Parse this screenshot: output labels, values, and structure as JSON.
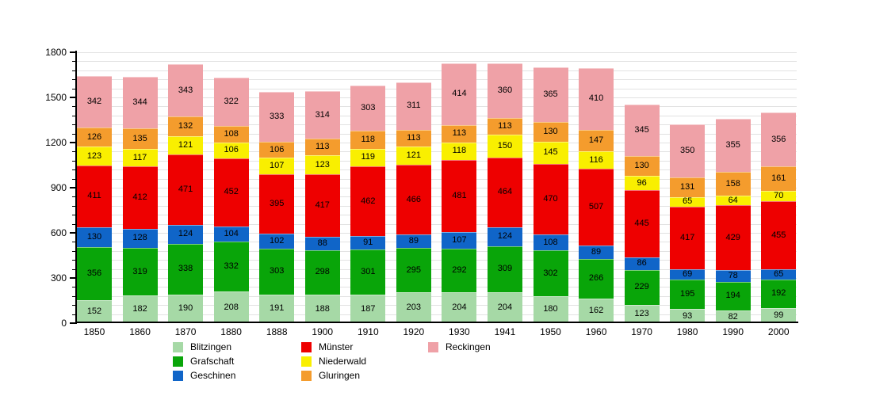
{
  "chart_data": {
    "type": "bar",
    "stacked": true,
    "title": "",
    "xlabel": "",
    "ylabel": "",
    "ylim": [
      0,
      1800
    ],
    "y_major_step": 300,
    "y_minor_step": 60,
    "y_ticks": [
      0,
      300,
      600,
      900,
      1200,
      1500,
      1800
    ],
    "grid": true,
    "categories": [
      "1850",
      "1860",
      "1870",
      "1880",
      "1888",
      "1900",
      "1910",
      "1920",
      "1930",
      "1941",
      "1950",
      "1960",
      "1970",
      "1980",
      "1990",
      "2000"
    ],
    "series": [
      {
        "name": "Blitzingen",
        "color": "#a6d9a6",
        "values": [
          152,
          182,
          190,
          208,
          191,
          188,
          187,
          203,
          204,
          204,
          180,
          162,
          123,
          93,
          82,
          99
        ]
      },
      {
        "name": "Grafschaft",
        "color": "#09a509",
        "values": [
          356,
          319,
          338,
          332,
          303,
          298,
          301,
          295,
          292,
          309,
          302,
          266,
          229,
          195,
          194,
          192
        ]
      },
      {
        "name": "Geschinen",
        "color": "#1065c8",
        "values": [
          130,
          128,
          124,
          104,
          102,
          88,
          91,
          89,
          107,
          124,
          108,
          89,
          86,
          69,
          78,
          65
        ]
      },
      {
        "name": "Münster",
        "color": "#ee0000",
        "values": [
          411,
          412,
          471,
          452,
          395,
          417,
          462,
          466,
          481,
          464,
          470,
          507,
          445,
          417,
          429,
          455
        ]
      },
      {
        "name": "Niederwald",
        "color": "#f9ef00",
        "values": [
          123,
          117,
          121,
          106,
          107,
          123,
          119,
          121,
          118,
          150,
          145,
          116,
          96,
          65,
          64,
          70
        ]
      },
      {
        "name": "Gluringen",
        "color": "#f49c2d",
        "values": [
          126,
          135,
          132,
          108,
          106,
          113,
          118,
          113,
          113,
          113,
          130,
          147,
          130,
          131,
          158,
          161
        ]
      },
      {
        "name": "Reckingen",
        "color": "#efa1a7",
        "values": [
          342,
          344,
          343,
          322,
          333,
          314,
          303,
          311,
          414,
          360,
          365,
          410,
          345,
          350,
          355,
          356
        ]
      }
    ],
    "legend": {
      "position": "bottom",
      "columns": [
        [
          "Blitzingen",
          "Grafschaft",
          "Geschinen"
        ],
        [
          "Münster",
          "Niederwald",
          "Gluringen"
        ],
        [
          "Reckingen"
        ]
      ]
    }
  },
  "colors": {
    "background": "#ffffff",
    "grid": "#e2e2e2",
    "axis": "#000000",
    "label": "#000000"
  }
}
